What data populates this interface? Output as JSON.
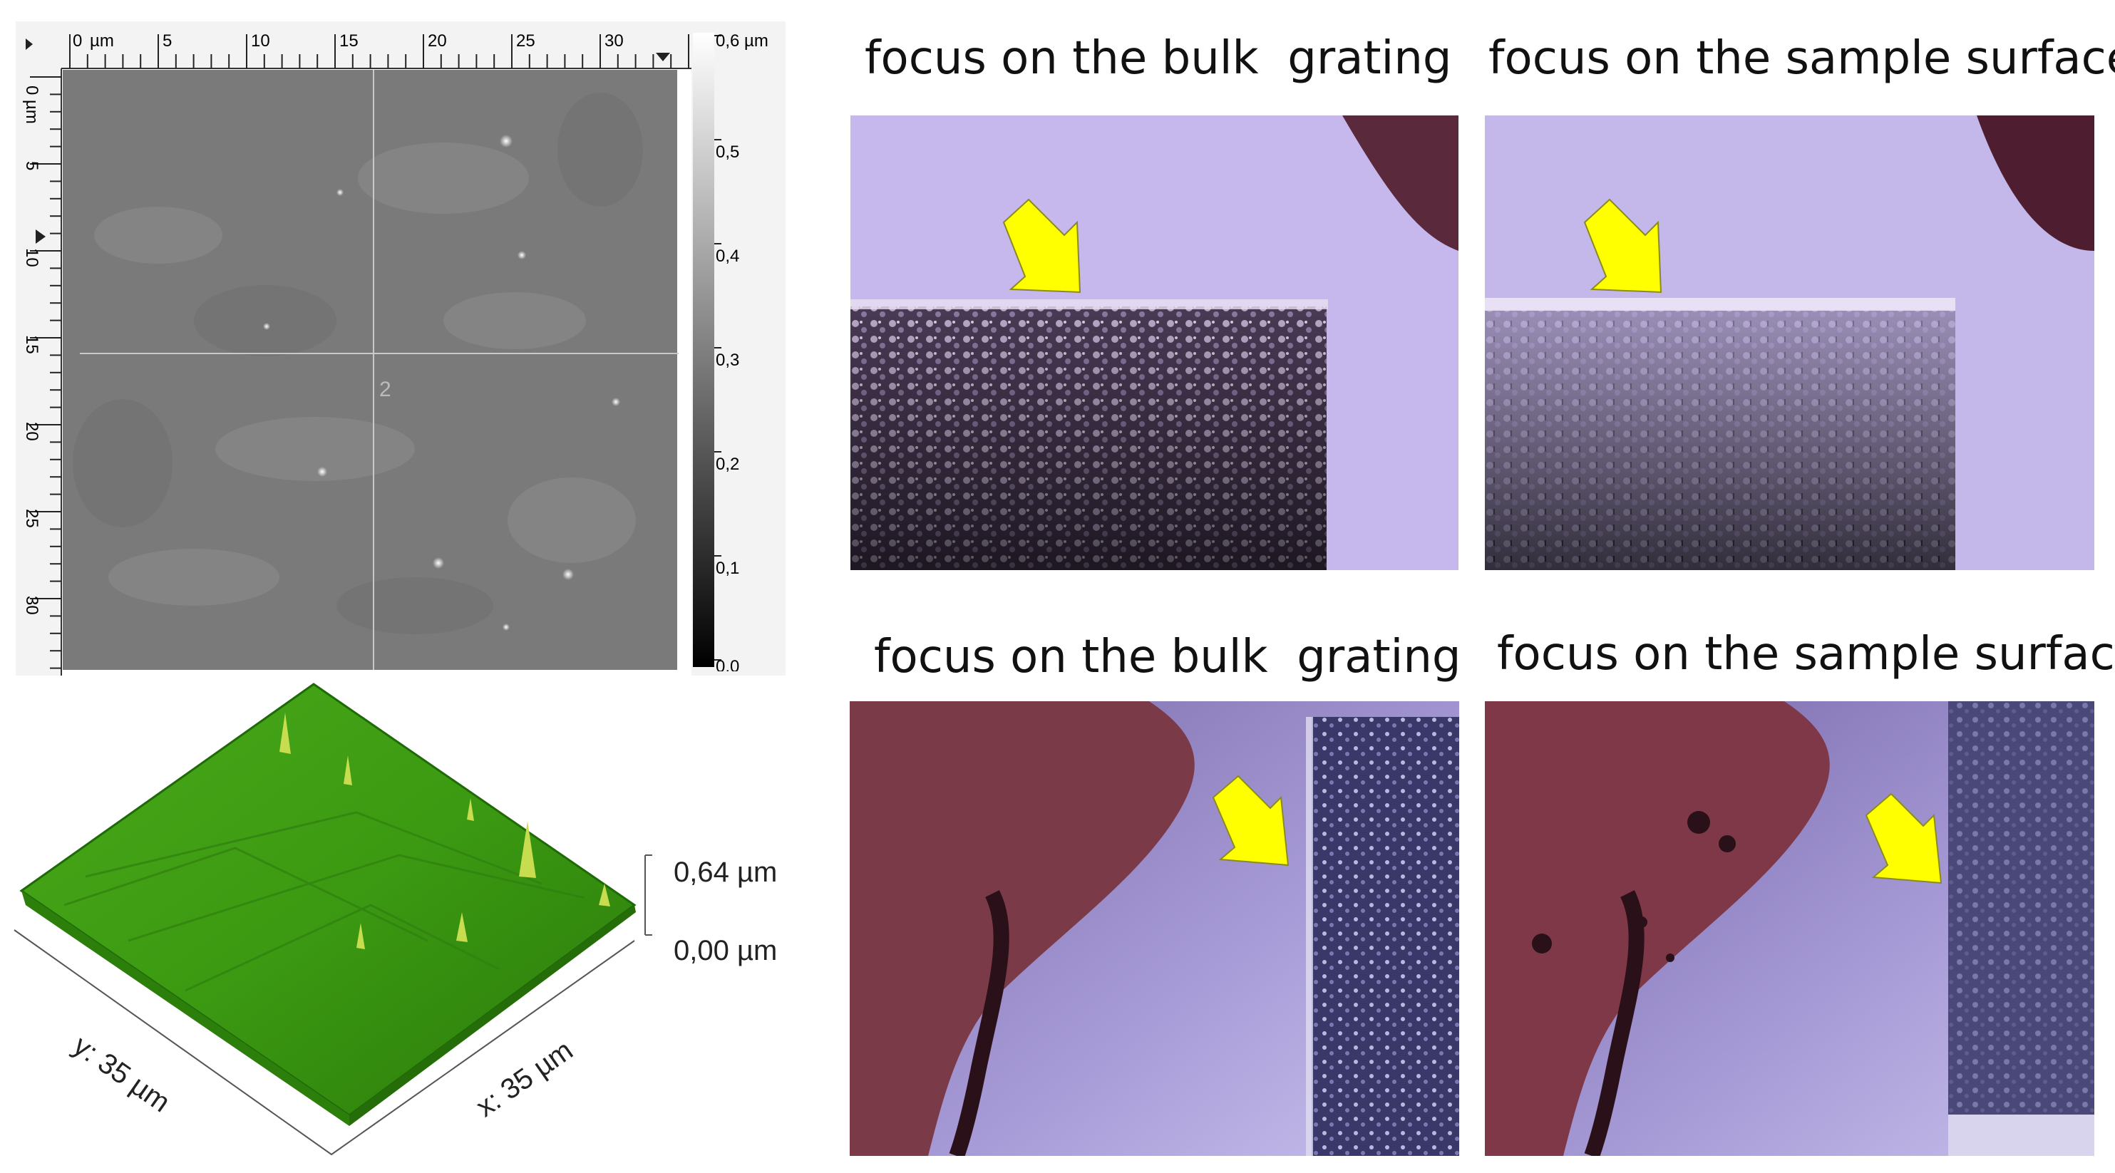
{
  "afm_2d": {
    "x_axis_unit": "µm",
    "x_ticks": [
      "0",
      "5",
      "10",
      "15",
      "20",
      "25",
      "30"
    ],
    "y_axis_unit": "µm",
    "y_ticks": [
      "0",
      "5",
      "10",
      "15",
      "20",
      "25",
      "30"
    ],
    "colorbar_ticks": [
      "0,6 µm",
      "0,5",
      "0,4",
      "0,3",
      "0,2",
      "0,1",
      "0,0"
    ],
    "crosshair_label": "2",
    "colors": {
      "background": "#7a7a7a",
      "ruler": "#f2f2f2"
    }
  },
  "afm_3d": {
    "z_max_label": "0,64 µm",
    "z_min_label": "0,00 µm",
    "y_axis_label": "y: 35 µm",
    "x_axis_label": "x: 35 µm",
    "colors": {
      "surface": "#3c9a12",
      "surface_dark": "#1f6a08",
      "peak": "#b7d23a"
    }
  },
  "micrographs": {
    "top_left_caption": "focus on the bulk  grating",
    "top_right_caption": "focus on the sample surface",
    "bottom_left_caption": "focus on the bulk  grating",
    "bottom_right_caption": "focus on the sample surface",
    "colors": {
      "substrate": "#c4b6ea",
      "arrow": "#ffff00",
      "edge": "#5a3040"
    }
  }
}
